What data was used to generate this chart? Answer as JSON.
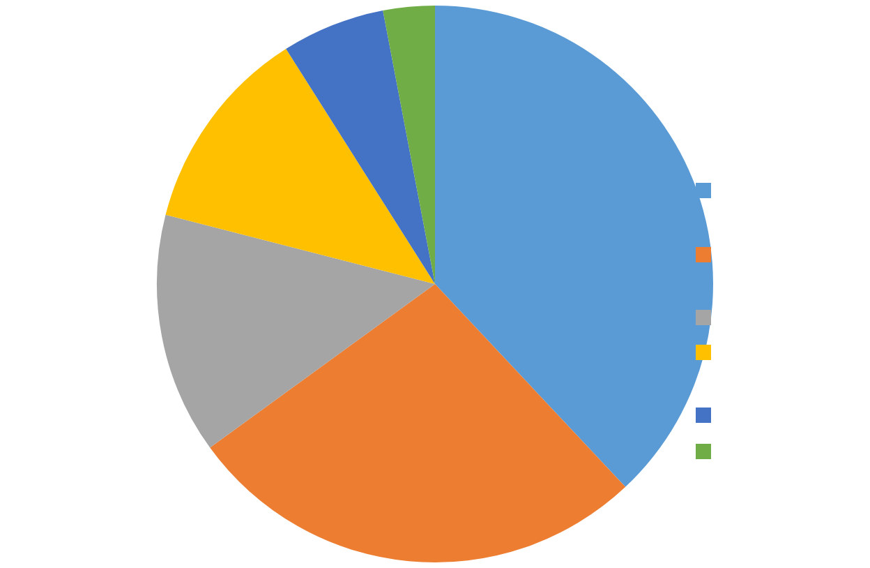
{
  "chart_data": {
    "type": "pie",
    "categories": [
      null,
      null,
      null,
      null,
      null,
      null
    ],
    "values": [
      38,
      27,
      14,
      12,
      6,
      3
    ],
    "colors": [
      "#5b9bd5",
      "#ed7d31",
      "#a5a5a5",
      "#ffc000",
      "#4472c4",
      "#70ad47"
    ]
  }
}
